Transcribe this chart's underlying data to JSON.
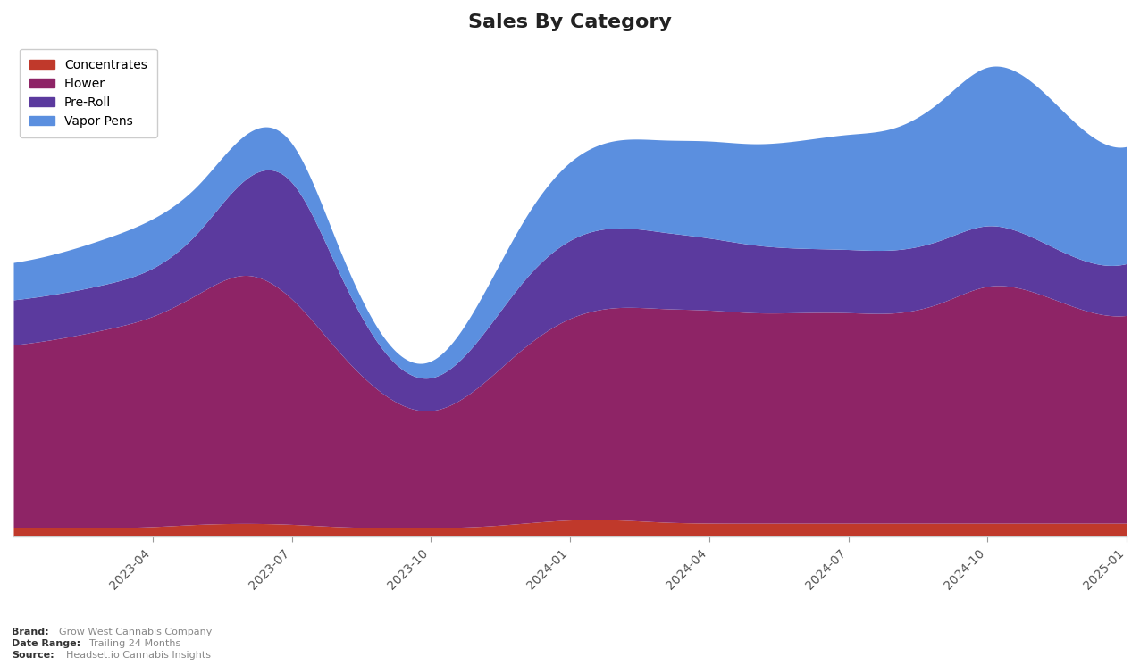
{
  "title": "Sales By Category",
  "categories": [
    "Concentrates",
    "Flower",
    "Pre-Roll",
    "Vapor Pens"
  ],
  "colors": {
    "Concentrates": "#c0392b",
    "Flower": "#8e2466",
    "Pre-Roll": "#5b3a9e",
    "Vapor Pens": "#5b8fdf"
  },
  "x_tick_labels": [
    "2023-04",
    "2023-07",
    "2023-10",
    "2024-01",
    "2024-04",
    "2024-07",
    "2024-10",
    "2025-01"
  ],
  "brand_text": "Grow West Cannabis Company",
  "date_range_text": "Trailing 24 Months",
  "source_text": "Headset.io Cannabis Insights",
  "background_color": "#ffffff",
  "plot_background": "#ffffff"
}
